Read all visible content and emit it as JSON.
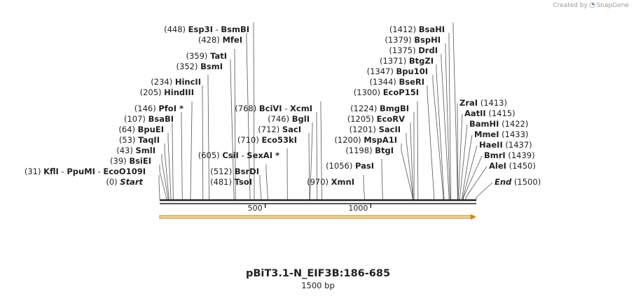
{
  "credit": {
    "prefix": "Created by",
    "brand": "SnapGene"
  },
  "title": "pBiT3.1-N_EIF3B:186-685",
  "length_label": "1500 bp",
  "ruler": {
    "length": 1500,
    "ticks": [
      {
        "value": 500,
        "label": "500"
      },
      {
        "value": 1000,
        "label": "1000"
      }
    ]
  },
  "sites": [
    {
      "pos": 448,
      "label": "(448)",
      "names": [
        "Esp3I",
        "BsmBI"
      ]
    },
    {
      "pos": 428,
      "label": "(428)",
      "names": [
        "MfeI"
      ]
    },
    {
      "pos": 359,
      "label": "(359)",
      "names": [
        "TatI"
      ]
    },
    {
      "pos": 352,
      "label": "(352)",
      "names": [
        "BsmI"
      ]
    },
    {
      "pos": 234,
      "label": "(234)",
      "names": [
        "HincII"
      ]
    },
    {
      "pos": 205,
      "label": "(205)",
      "names": [
        "HindIII"
      ]
    },
    {
      "pos": 146,
      "label": "(146)",
      "names": [
        "PfoI *"
      ]
    },
    {
      "pos": 107,
      "label": "(107)",
      "names": [
        "BsaBI"
      ]
    },
    {
      "pos": 64,
      "label": "(64)",
      "names": [
        "BpuEI"
      ]
    },
    {
      "pos": 53,
      "label": "(53)",
      "names": [
        "TaqII"
      ]
    },
    {
      "pos": 43,
      "label": "(43)",
      "names": [
        "SmlI"
      ]
    },
    {
      "pos": 39,
      "label": "(39)",
      "names": [
        "BsiEI"
      ]
    },
    {
      "pos": 31,
      "label": "(31)",
      "names": [
        "KflI",
        "PpuMI",
        "EcoO109I"
      ]
    },
    {
      "pos": 0,
      "label": "(0)",
      "names": [
        "Start"
      ],
      "italic": true
    },
    {
      "pos": 605,
      "label": "(605)",
      "names": [
        "CsiI",
        "SexAI *"
      ]
    },
    {
      "pos": 512,
      "label": "(512)",
      "names": [
        "BsrDI"
      ]
    },
    {
      "pos": 481,
      "label": "(481)",
      "names": [
        "TsoI"
      ]
    },
    {
      "pos": 768,
      "label": "(768)",
      "names": [
        "BciVI",
        "XcmI"
      ]
    },
    {
      "pos": 746,
      "label": "(746)",
      "names": [
        "BglI"
      ]
    },
    {
      "pos": 712,
      "label": "(712)",
      "names": [
        "SacI"
      ]
    },
    {
      "pos": 710,
      "label": "(710)",
      "names": [
        "Eco53kI"
      ]
    },
    {
      "pos": 970,
      "label": "(970)",
      "names": [
        "XmnI"
      ]
    },
    {
      "pos": 1056,
      "label": "(1056)",
      "names": [
        "PasI"
      ]
    },
    {
      "pos": 1224,
      "label": "(1224)",
      "names": [
        "BmgBI"
      ]
    },
    {
      "pos": 1205,
      "label": "(1205)",
      "names": [
        "EcoRV"
      ]
    },
    {
      "pos": 1201,
      "label": "(1201)",
      "names": [
        "SacII"
      ]
    },
    {
      "pos": 1200,
      "label": "(1200)",
      "names": [
        "MspA1I"
      ]
    },
    {
      "pos": 1198,
      "label": "(1198)",
      "names": [
        "BtgI"
      ]
    },
    {
      "pos": 1412,
      "label": "(1412)",
      "names": [
        "BsaHI"
      ]
    },
    {
      "pos": 1379,
      "label": "(1379)",
      "names": [
        "BspHI"
      ]
    },
    {
      "pos": 1375,
      "label": "(1375)",
      "names": [
        "DrdI"
      ]
    },
    {
      "pos": 1371,
      "label": "(1371)",
      "names": [
        "BtgZI"
      ]
    },
    {
      "pos": 1347,
      "label": "(1347)",
      "names": [
        "Bpu10I"
      ]
    },
    {
      "pos": 1344,
      "label": "(1344)",
      "names": [
        "BseRI"
      ]
    },
    {
      "pos": 1300,
      "label": "(1300)",
      "names": [
        "EcoP15I"
      ]
    },
    {
      "pos": 1413,
      "label": "(1413)",
      "names": [
        "ZraI"
      ]
    },
    {
      "pos": 1415,
      "label": "(1415)",
      "names": [
        "AatII"
      ]
    },
    {
      "pos": 1422,
      "label": "(1422)",
      "names": [
        "BamHI"
      ]
    },
    {
      "pos": 1433,
      "label": "(1433)",
      "names": [
        "MmeI"
      ]
    },
    {
      "pos": 1437,
      "label": "(1437)",
      "names": [
        "HaeII"
      ]
    },
    {
      "pos": 1439,
      "label": "(1439)",
      "names": [
        "BmrI"
      ]
    },
    {
      "pos": 1450,
      "label": "(1450)",
      "names": [
        "AleI"
      ]
    },
    {
      "pos": 1500,
      "label": "(1500)",
      "names": [
        "End"
      ],
      "italic": true
    }
  ],
  "colors": {
    "feature_fill": "#f5d49a",
    "feature_stroke": "#c98a1e",
    "backbone": "#222222",
    "leader": "#555555"
  }
}
